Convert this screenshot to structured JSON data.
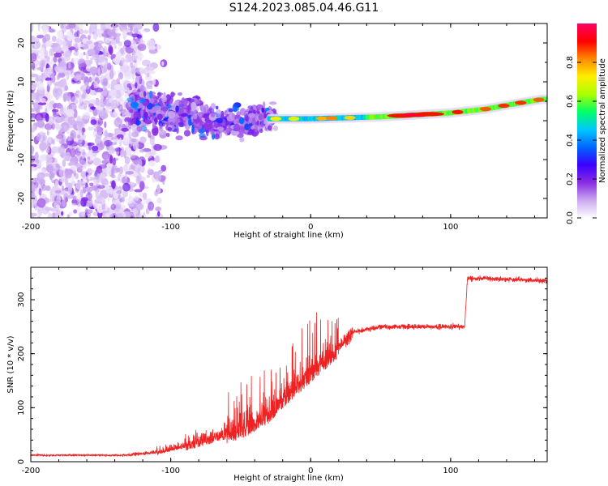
{
  "title": "S124.2023.085.04.46.G11",
  "chart_data": [
    {
      "type": "heatmap",
      "xlabel": "Height of straight line (km)",
      "ylabel": "Frequency (Hz)",
      "xlim": [
        -200,
        169
      ],
      "ylim": [
        -25,
        25
      ],
      "x_ticks": [
        -200,
        -100,
        0,
        100
      ],
      "y_ticks": [
        -20,
        -10,
        0,
        10,
        20
      ],
      "colorbar": {
        "label": "Normalized spectral amplitude",
        "range": [
          0,
          1
        ],
        "ticks": [
          0.0,
          0.2,
          0.4,
          0.6,
          0.8
        ],
        "colormap": [
          "#ffffff",
          "#c9a8f0",
          "#8a2be2",
          "#3a00ff",
          "#0066ff",
          "#00c8ff",
          "#00ff66",
          "#aaff00",
          "#ffee00",
          "#ff8800",
          "#ff0000",
          "#ff0066"
        ]
      },
      "ridge": {
        "description_points": [
          {
            "x": -30,
            "y": 0.5
          },
          {
            "x": 0,
            "y": 0.5
          },
          {
            "x": 50,
            "y": 1.0
          },
          {
            "x": 100,
            "y": 2.0
          },
          {
            "x": 125,
            "y": 3.0
          },
          {
            "x": 145,
            "y": 4.3
          },
          {
            "x": 165,
            "y": 5.5
          }
        ]
      }
    },
    {
      "type": "line",
      "color": "#ee2222",
      "xlabel": "Height of straight line (km)",
      "ylabel": "SNR (10 * v/v)",
      "xlim": [
        -200,
        169
      ],
      "ylim": [
        0,
        360
      ],
      "x_ticks": [
        -200,
        -100,
        0,
        100
      ],
      "y_ticks": [
        0,
        100,
        200,
        300
      ],
      "trend": [
        {
          "x": -200,
          "y": 12
        },
        {
          "x": -130,
          "y": 12
        },
        {
          "x": -110,
          "y": 18
        },
        {
          "x": -90,
          "y": 30
        },
        {
          "x": -70,
          "y": 45
        },
        {
          "x": -50,
          "y": 60
        },
        {
          "x": -30,
          "y": 90
        },
        {
          "x": -15,
          "y": 130
        },
        {
          "x": 0,
          "y": 165
        },
        {
          "x": 15,
          "y": 200
        },
        {
          "x": 30,
          "y": 240
        },
        {
          "x": 50,
          "y": 250
        },
        {
          "x": 110,
          "y": 250
        },
        {
          "x": 112,
          "y": 340
        },
        {
          "x": 169,
          "y": 335
        }
      ]
    }
  ]
}
